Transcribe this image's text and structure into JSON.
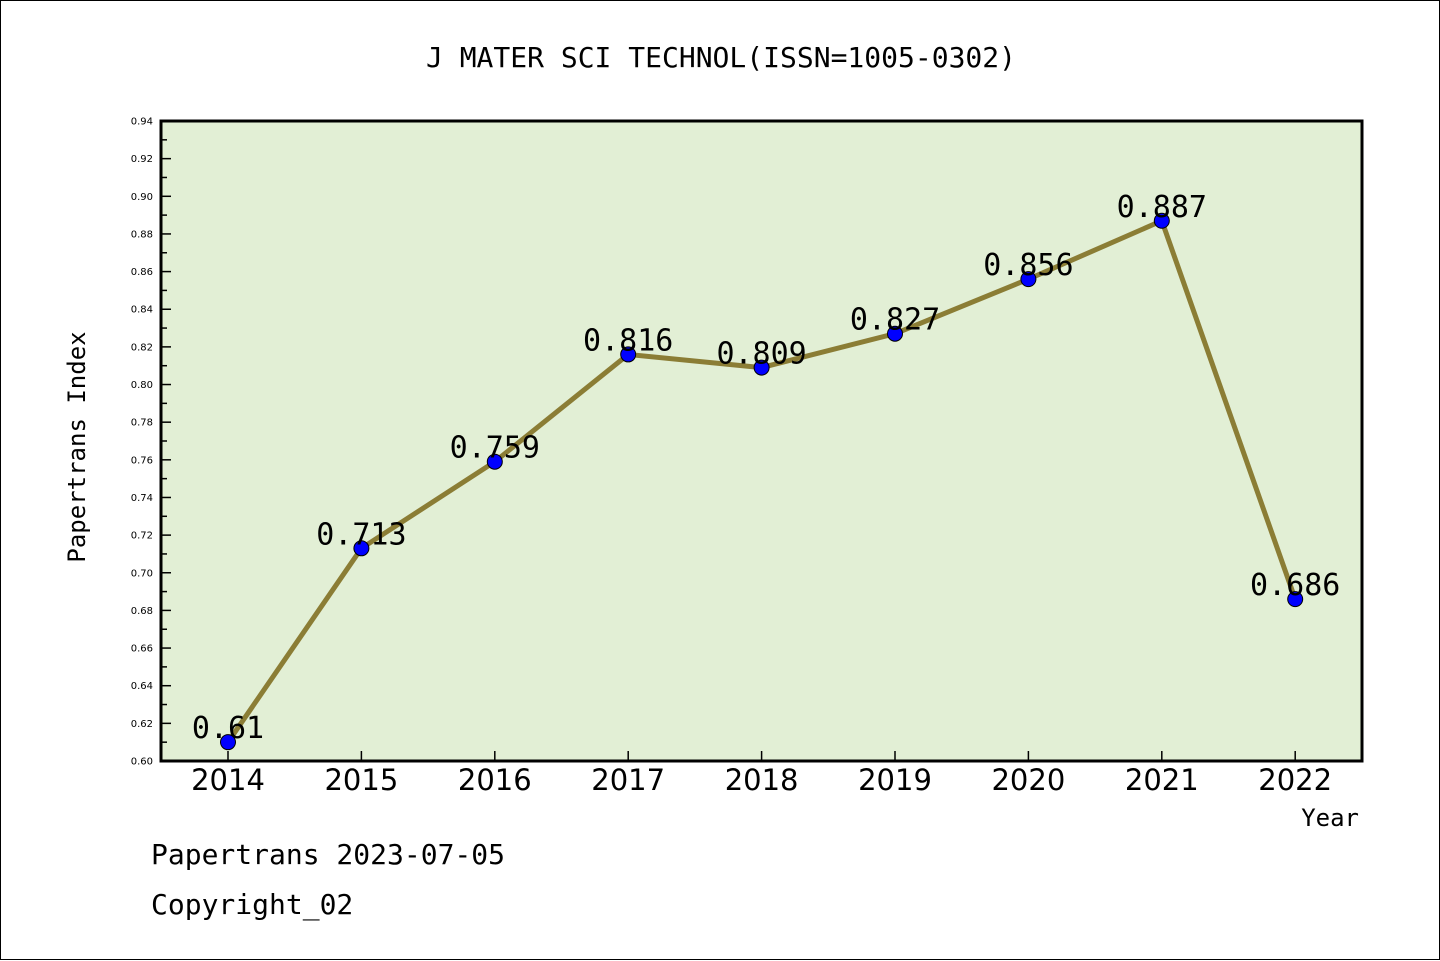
{
  "chart_data": {
    "type": "line",
    "title": "J MATER SCI TECHNOL(ISSN=1005-0302)",
    "xlabel": "Year",
    "ylabel": "Papertrans Index",
    "categories": [
      "2014",
      "2015",
      "2016",
      "2017",
      "2018",
      "2019",
      "2020",
      "2021",
      "2022"
    ],
    "values": [
      0.61,
      0.713,
      0.759,
      0.816,
      0.809,
      0.827,
      0.856,
      0.887,
      0.686
    ],
    "data_labels": [
      "0.61",
      "0.713",
      "0.759",
      "0.816",
      "0.809",
      "0.827",
      "0.856",
      "0.887",
      "0.686"
    ],
    "ylim": [
      0.6,
      0.94
    ],
    "yticks": [
      "0.60",
      "0.62",
      "0.64",
      "0.66",
      "0.68",
      "0.70",
      "0.72",
      "0.74",
      "0.76",
      "0.78",
      "0.80",
      "0.82",
      "0.84",
      "0.86",
      "0.88",
      "0.90",
      "0.92",
      "0.94"
    ],
    "grid": false,
    "legend": "none",
    "colors": {
      "plot_background": "#e2efd5",
      "line": "#8b7d35",
      "marker": "#0000ff"
    }
  },
  "footer": {
    "date_text": "Papertrans 2023-07-05",
    "copyright_text": "Copyright_02"
  }
}
